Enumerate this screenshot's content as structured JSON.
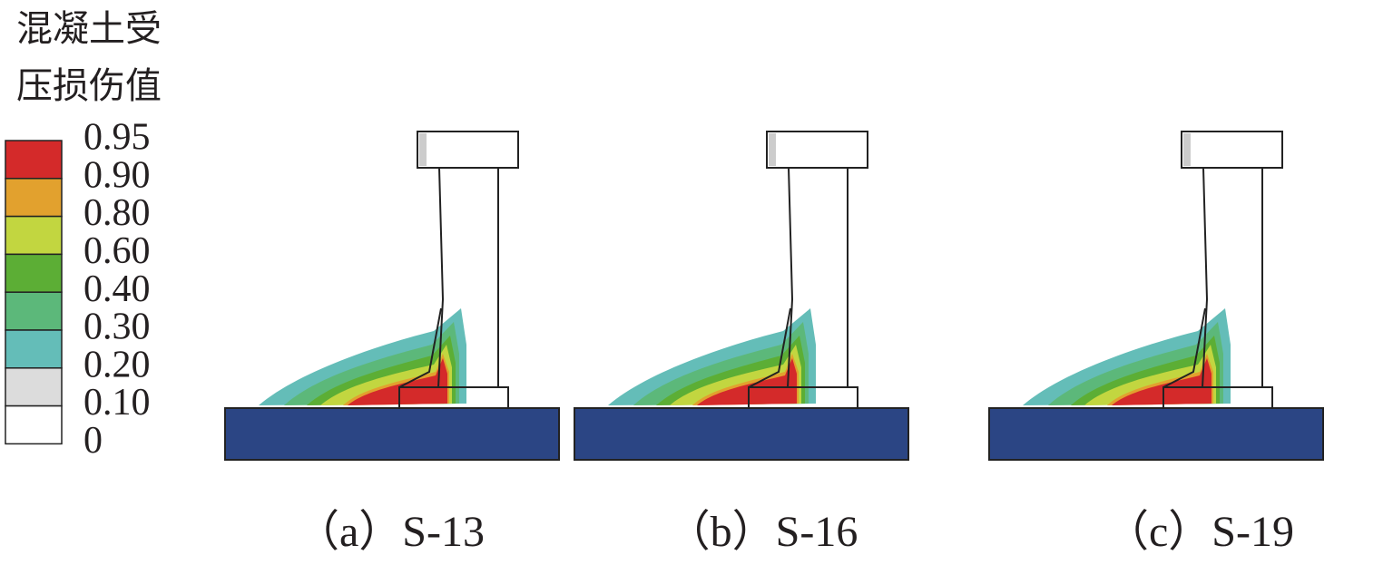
{
  "legend": {
    "title": [
      "混凝土受",
      "压损伤值"
    ],
    "labels": [
      "0.95",
      "0.90",
      "0.80",
      "0.60",
      "0.40",
      "0.30",
      "0.20",
      "0.10",
      "0"
    ],
    "colors": [
      "#d42a2a",
      "#e2a12e",
      "#c2d640",
      "#5cae35",
      "#5cb87a",
      "#64bdb8",
      "#dcdcdc",
      "#ffffff"
    ]
  },
  "panels": [
    {
      "caption": "（a）S-13"
    },
    {
      "caption": "（b）S-16"
    },
    {
      "caption": "（c）S-19"
    }
  ]
}
